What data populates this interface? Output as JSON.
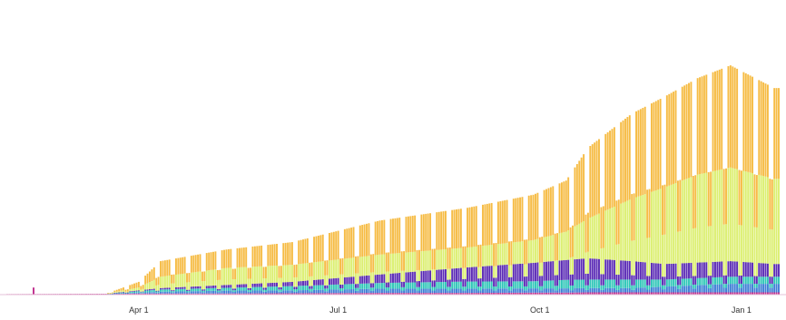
{
  "chart_data": {
    "type": "bar",
    "stacked": true,
    "title": "",
    "xlabel": "",
    "ylabel": "",
    "x_tick_labels": [
      "Apr 1",
      "Jul 1",
      "Oct 1",
      "Jan 1"
    ],
    "grid": false,
    "legend": "none",
    "series_colors": {
      "magenta": "#c02f8e",
      "blue": "#3f7fd6",
      "teal": "#2fc6b8",
      "purple": "#5b2bb5",
      "light_green": "#dcef72",
      "orange": "#f6bc45"
    },
    "description_of_scale": "daily stacked values, y-axis unlabeled; values expressed as relative units (max ≈ 100)",
    "keyframes": [
      {
        "day": 0,
        "magenta": 0.2,
        "blue": 0.0,
        "teal": 0.0,
        "purple": 0.0,
        "light_green": 0.0,
        "orange": 0.0
      },
      {
        "day": 45,
        "magenta": 0.3,
        "blue": 0.0,
        "teal": 0.0,
        "purple": 0.0,
        "light_green": 0.0,
        "orange": 0.0
      },
      {
        "day": 60,
        "magenta": 0.4,
        "blue": 0.3,
        "teal": 0.5,
        "purple": 0.3,
        "light_green": 1.0,
        "orange": 2.0
      },
      {
        "day": 70,
        "magenta": 0.4,
        "blue": 0.6,
        "teal": 0.8,
        "purple": 0.5,
        "light_green": 4.0,
        "orange": 5.5
      },
      {
        "day": 100,
        "magenta": 0.4,
        "blue": 1.0,
        "teal": 1.0,
        "purple": 1.0,
        "light_green": 6.0,
        "orange": 6.5
      },
      {
        "day": 130,
        "magenta": 0.5,
        "blue": 1.0,
        "teal": 1.5,
        "purple": 1.5,
        "light_green": 6.0,
        "orange": 8.0
      },
      {
        "day": 170,
        "magenta": 0.6,
        "blue": 1.5,
        "teal": 2.0,
        "purple": 3.0,
        "light_green": 7.0,
        "orange": 12.0
      },
      {
        "day": 210,
        "magenta": 0.6,
        "blue": 1.5,
        "teal": 2.5,
        "purple": 5.0,
        "light_green": 7.0,
        "orange": 14.0
      },
      {
        "day": 240,
        "magenta": 0.7,
        "blue": 1.5,
        "teal": 2.5,
        "purple": 6.5,
        "light_green": 8.0,
        "orange": 16.0
      },
      {
        "day": 255,
        "magenta": 0.7,
        "blue": 1.5,
        "teal": 3.0,
        "purple": 7.0,
        "light_green": 10.0,
        "orange": 18.0
      },
      {
        "day": 265,
        "magenta": 0.8,
        "blue": 1.5,
        "teal": 3.0,
        "purple": 7.5,
        "light_green": 14.0,
        "orange": 25.0
      },
      {
        "day": 285,
        "magenta": 0.8,
        "blue": 1.5,
        "teal": 3.0,
        "purple": 6.5,
        "light_green": 22.0,
        "orange": 30.0
      },
      {
        "day": 300,
        "magenta": 0.8,
        "blue": 2.0,
        "teal": 2.5,
        "purple": 5.5,
        "light_green": 27.0,
        "orange": 32.0
      },
      {
        "day": 315,
        "magenta": 0.8,
        "blue": 2.5,
        "teal": 2.5,
        "purple": 5.5,
        "light_green": 31.0,
        "orange": 34.0
      },
      {
        "day": 330,
        "magenta": 0.8,
        "blue": 3.0,
        "teal": 2.5,
        "purple": 5.5,
        "light_green": 33.0,
        "orange": 36.0
      },
      {
        "day": 350,
        "magenta": 0.8,
        "blue": 3.0,
        "teal": 2.5,
        "purple": 4.5,
        "light_green": 30.0,
        "orange": 32.0
      }
    ],
    "weekly_dip_factor": 0.55,
    "outlier_days": [
      {
        "day": 12,
        "magenta": 2.5
      }
    ],
    "x_tick_days": [
      60,
      151,
      243,
      335
    ],
    "x_day_range": [
      0,
      352
    ],
    "y_range": [
      0,
      100
    ]
  }
}
